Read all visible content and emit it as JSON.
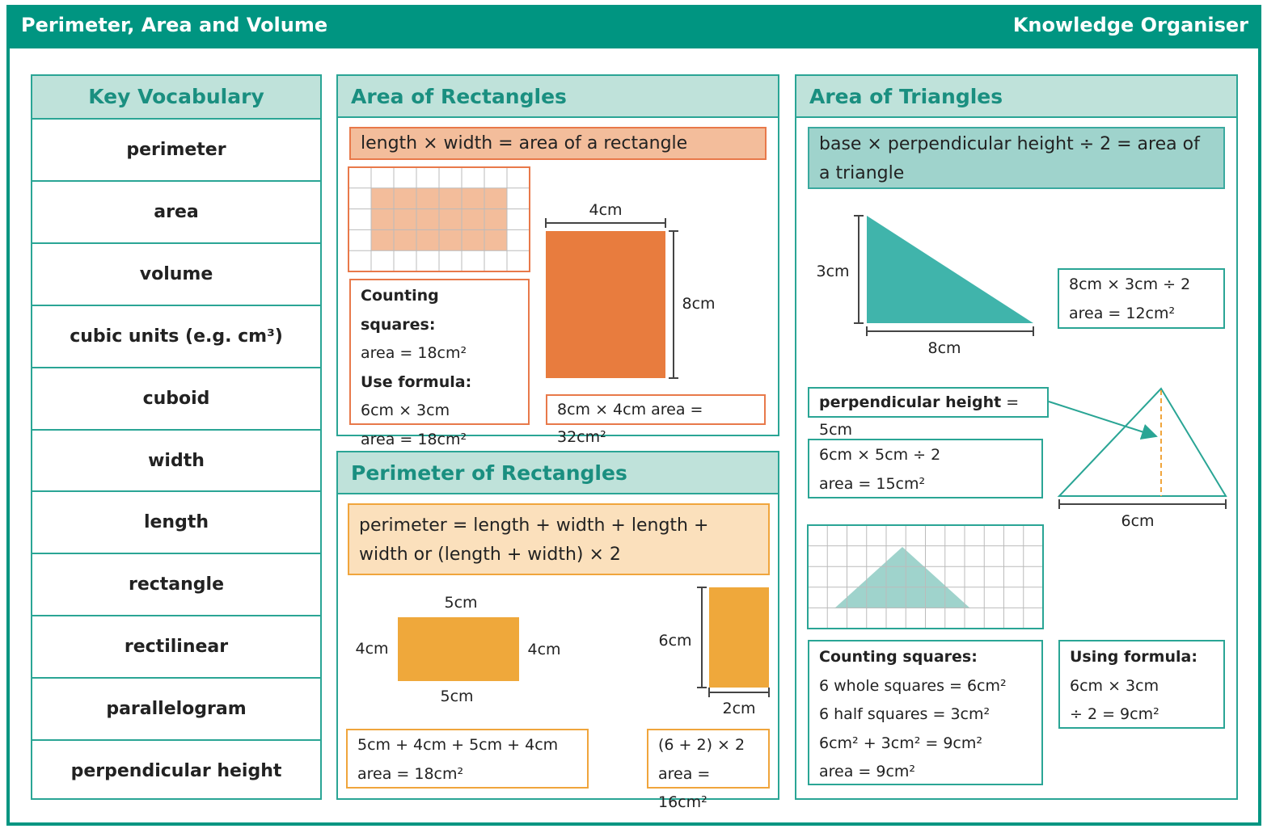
{
  "header": {
    "title": "Perimeter, Area and Volume",
    "subtitle": "Knowledge Organiser"
  },
  "vocabulary": {
    "title": "Key Vocabulary",
    "terms": [
      "perimeter",
      "area",
      "volume",
      "cubic units (e.g. cm³)",
      "cuboid",
      "width",
      "length",
      "rectangle",
      "rectilinear",
      "parallelogram",
      "perpendicular height"
    ]
  },
  "area_of_rectangles": {
    "title": "Area of Rectangles",
    "formula": "length × width = area of a rectangle",
    "counting": {
      "heading": "Counting squares:",
      "area": "area = 18cm²",
      "formula_heading": "Use formula:",
      "calculation": "6cm × 3cm",
      "result": "area = 18cm²"
    },
    "example": {
      "width": "4cm",
      "height": "8cm",
      "calculation": "8cm × 4cm area = 32cm²"
    }
  },
  "perimeter_of_rectangles": {
    "title": "Perimeter of Rectangles",
    "formula": "perimeter = length + width + length + width or (length + width) × 2",
    "example1": {
      "top": "5cm",
      "left": "4cm",
      "right": "4cm",
      "bottom": "5cm",
      "calculation": "5cm + 4cm + 5cm + 4cm",
      "result": "area = 18cm²"
    },
    "example2": {
      "height": "6cm",
      "width": "2cm",
      "calculation": "(6 + 2) × 2",
      "result": "area = 16cm²"
    }
  },
  "area_of_triangles": {
    "title": "Area of Triangles",
    "formula": "base × perpendicular height ÷ 2 = area of a triangle",
    "example1": {
      "height": "3cm",
      "base": "8cm",
      "calculation": "8cm × 3cm ÷ 2",
      "result": "area = 12cm²"
    },
    "example2": {
      "label": "perpendicular height",
      "value": "= 5cm",
      "calculation": "6cm × 5cm ÷ 2",
      "result": "area = 15cm²",
      "base": "6cm"
    },
    "counting": {
      "heading": "Counting squares:",
      "lines": [
        "6 whole squares = 6cm²",
        "6 half squares = 3cm²",
        "6cm² + 3cm² = 9cm²",
        "area = 9cm²"
      ]
    },
    "formula_example": {
      "heading": "Using formula:",
      "lines": [
        "6cm × 3cm",
        "÷ 2 = 9cm²"
      ]
    }
  }
}
